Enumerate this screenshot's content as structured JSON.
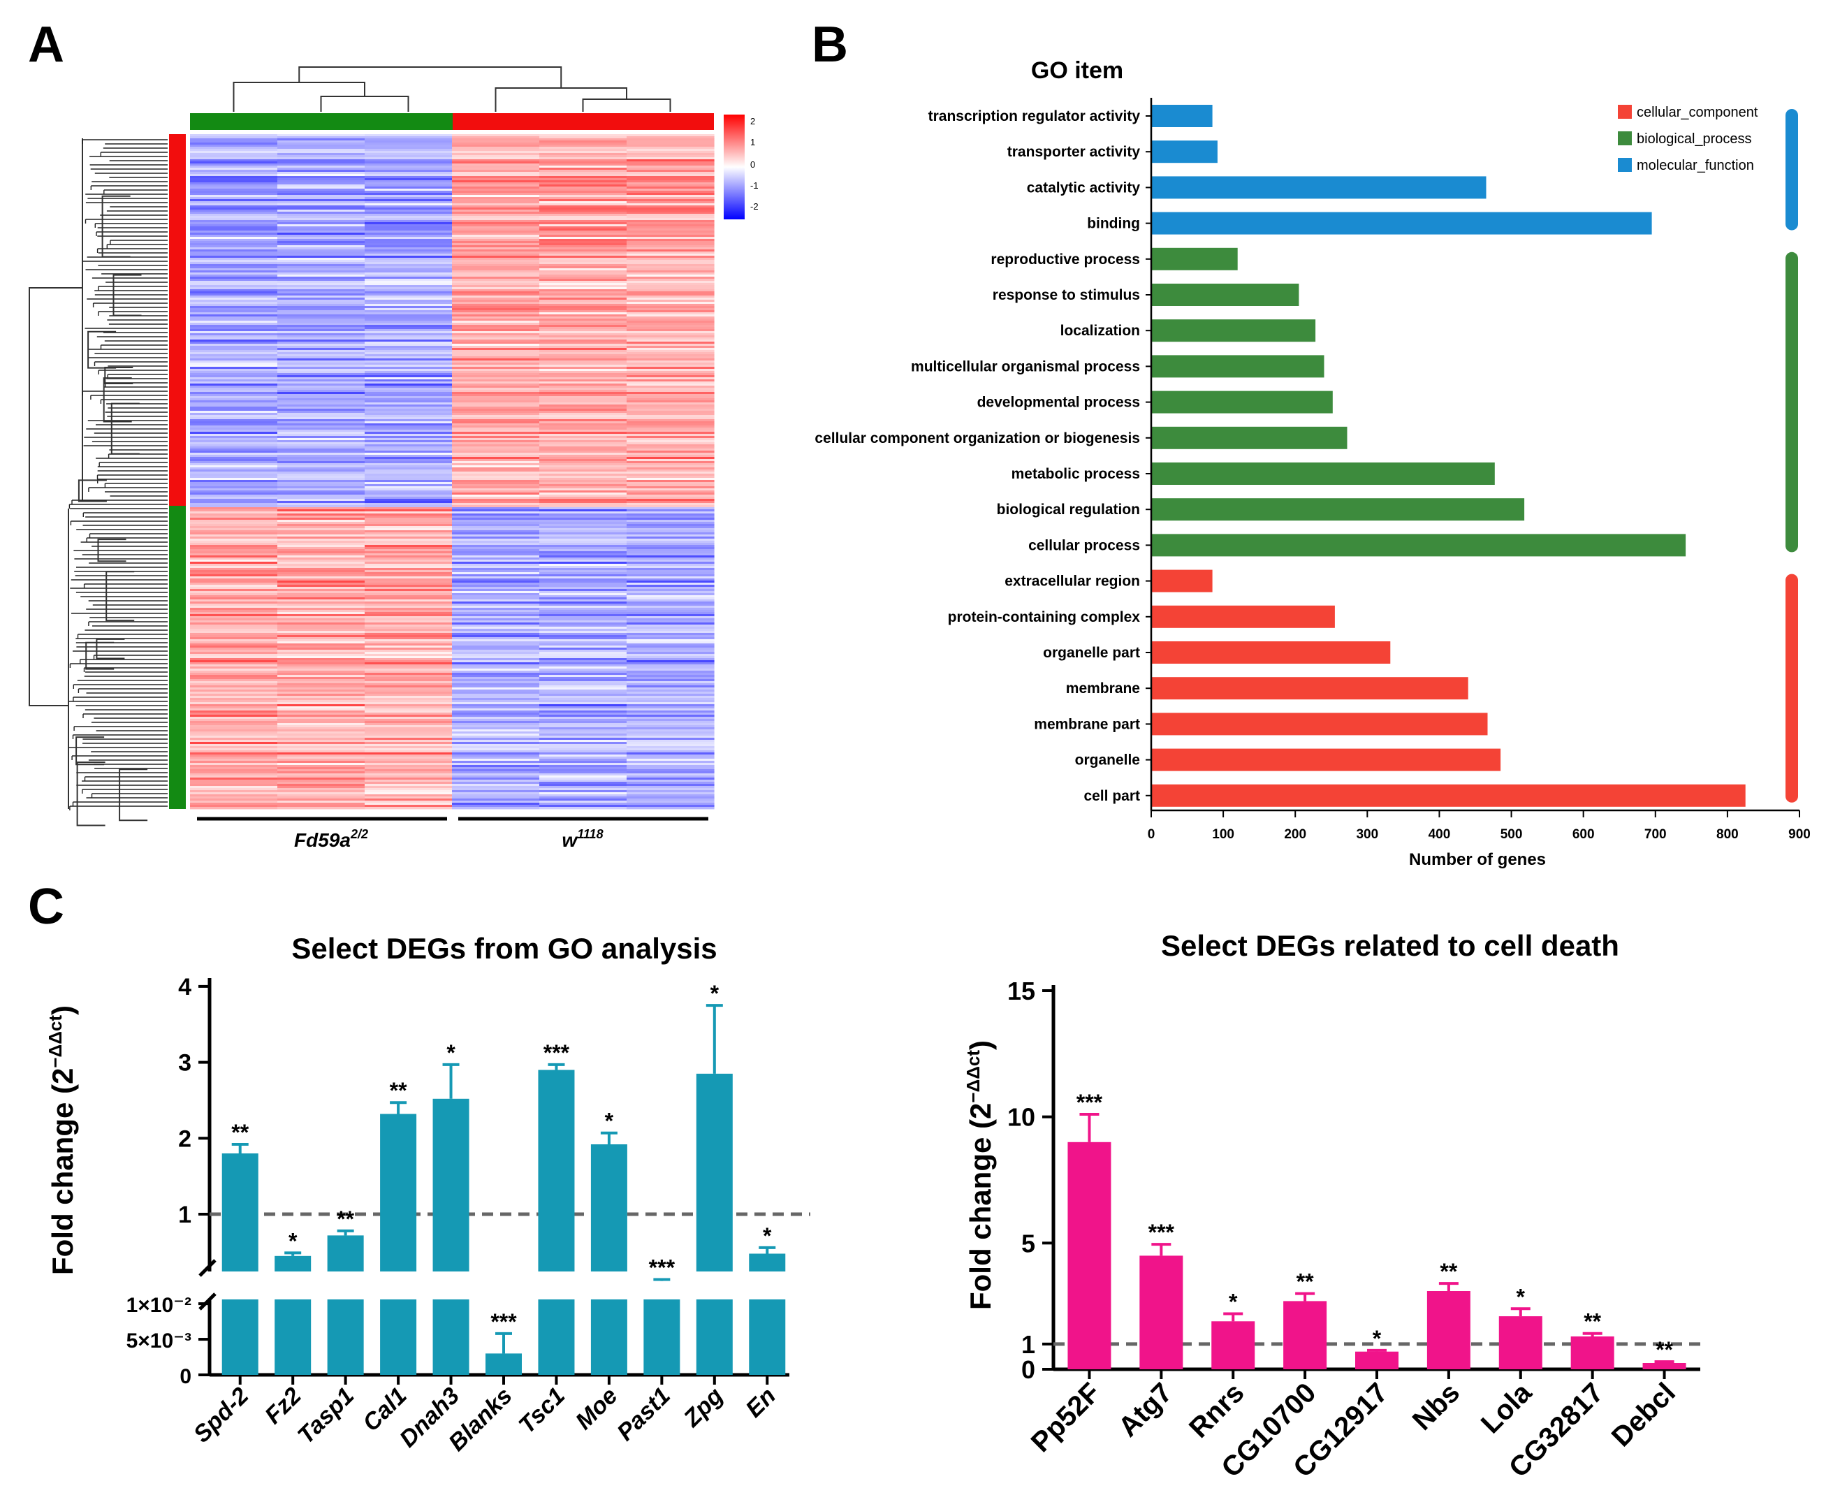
{
  "panels": {
    "a": {
      "label": "A",
      "col_groups": [
        {
          "label": "Fd59a",
          "sup": "2/2",
          "color": "#138a13"
        },
        {
          "label": "w",
          "sup": "1118",
          "color": "#f20d0d"
        }
      ],
      "row_clusters": [
        {
          "color": "#f20d0d",
          "pattern": "up-in-w1118"
        },
        {
          "color": "#138a13",
          "pattern": "up-in-Fd59a"
        }
      ],
      "colorbar_ticks": [
        "2",
        "1",
        "0",
        "-1",
        "-2"
      ],
      "colorbar_colors": [
        "#ff0000",
        "#ffffff",
        "#0000ff"
      ]
    },
    "b": {
      "label": "B"
    },
    "c": {
      "label": "C"
    }
  },
  "chart_data": [
    {
      "type": "bar",
      "orientation": "horizontal",
      "title": "GO item",
      "xlabel": "Number of genes",
      "xlim": [
        0,
        900
      ],
      "xticks": [
        "0",
        "100",
        "200",
        "300",
        "400",
        "500",
        "600",
        "700",
        "800",
        "900"
      ],
      "categories": [
        "transcription regulator activity",
        "transporter activity",
        "catalytic activity",
        "binding",
        "reproductive process",
        "response to stimulus",
        "localization",
        "multicellular organismal process",
        "developmental process",
        "cellular component organization or biogenesis",
        "metabolic process",
        "biological regulation",
        "cellular process",
        "extracellular region",
        "protein-containing complex",
        "organelle part",
        "membrane",
        "membrane part",
        "organelle",
        "cell part"
      ],
      "values": [
        85,
        92,
        465,
        695,
        120,
        205,
        228,
        240,
        252,
        272,
        477,
        518,
        742,
        85,
        255,
        332,
        440,
        467,
        485,
        825
      ],
      "groups": [
        "molecular_function",
        "molecular_function",
        "molecular_function",
        "molecular_function",
        "biological_process",
        "biological_process",
        "biological_process",
        "biological_process",
        "biological_process",
        "biological_process",
        "biological_process",
        "biological_process",
        "biological_process",
        "cellular_component",
        "cellular_component",
        "cellular_component",
        "cellular_component",
        "cellular_component",
        "cellular_component",
        "cellular_component"
      ],
      "legend": [
        {
          "name": "cellular_component",
          "color": "#f44336"
        },
        {
          "name": "biological_process",
          "color": "#3d8b3d"
        },
        {
          "name": "molecular_function",
          "color": "#1a8bd1"
        }
      ],
      "legend_position": "top-right"
    },
    {
      "type": "bar",
      "title": "Select DEGs from GO analysis",
      "ylabel_main": "Fold change (2",
      "ylabel_sup": "−ΔΔct",
      "ylabel_tail": ")",
      "axis_break": true,
      "upper_yticks": [
        "1",
        "2",
        "3",
        "4"
      ],
      "lower_yticks": [
        "0",
        "5×10⁻³",
        "1×10⁻²"
      ],
      "reference_line": 1,
      "color": "#1599b4",
      "categories": [
        "Spd-2",
        "Fz2",
        "Tasp1",
        "Cal1",
        "Dnah3",
        "Blanks",
        "Tsc1",
        "Moe",
        "Past1",
        "Zpg",
        "En"
      ],
      "values": [
        1.8,
        0.45,
        0.72,
        2.32,
        2.52,
        0.003,
        2.9,
        1.92,
        0.12,
        2.85,
        0.48
      ],
      "errors": [
        0.12,
        0.04,
        0.06,
        0.15,
        0.45,
        0.0028,
        0.07,
        0.15,
        0.02,
        0.9,
        0.08
      ],
      "significance": [
        "**",
        "*",
        "**",
        "**",
        "*",
        "***",
        "***",
        "*",
        "***",
        "*",
        "*"
      ]
    },
    {
      "type": "bar",
      "title": "Select DEGs related to cell death",
      "ylabel_main": "Fold change (2",
      "ylabel_sup": "−ΔΔct",
      "ylabel_tail": ")",
      "ylim": [
        0,
        15
      ],
      "yticks": [
        "0",
        "1",
        "5",
        "10",
        "15"
      ],
      "reference_line": 1,
      "color": "#f0148a",
      "categories": [
        "Pp52F",
        "Atg7",
        "Rnrs",
        "CG10700",
        "CG12917",
        "Nbs",
        "Lola",
        "CG32817",
        "Debcl"
      ],
      "values": [
        9.0,
        4.5,
        1.9,
        2.7,
        0.7,
        3.1,
        2.1,
        1.3,
        0.25
      ],
      "errors": [
        1.1,
        0.45,
        0.3,
        0.3,
        0.05,
        0.3,
        0.3,
        0.12,
        0.05
      ],
      "significance": [
        "***",
        "***",
        "*",
        "**",
        "*",
        "**",
        "*",
        "**",
        "**"
      ]
    }
  ]
}
